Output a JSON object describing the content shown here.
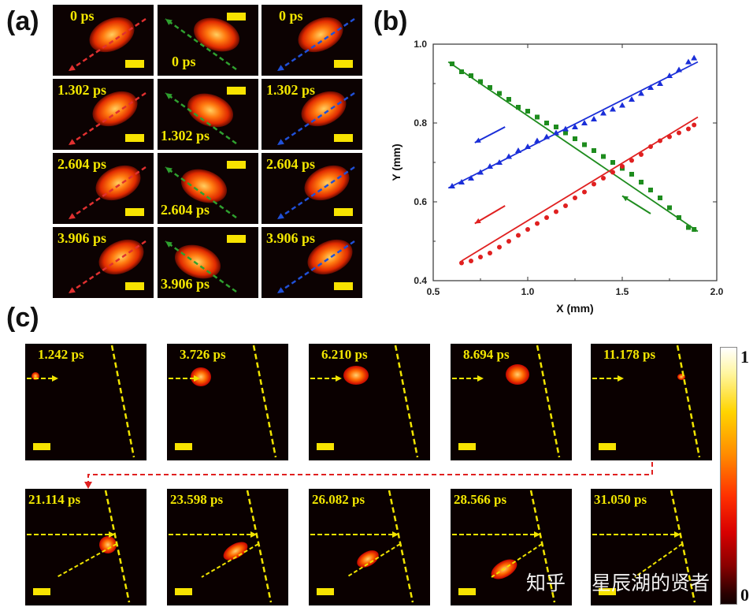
{
  "panel_labels": {
    "a": "(a)",
    "b": "(b)",
    "c": "(c)"
  },
  "panel_a": {
    "columns": [
      {
        "color": "#e03030",
        "direction": "down-left"
      },
      {
        "color": "#2fa02f",
        "direction": "up-left"
      },
      {
        "color": "#2050d8",
        "direction": "down-left"
      }
    ],
    "rows": [
      {
        "time": "0 ps"
      },
      {
        "time": "1.302 ps"
      },
      {
        "time": "2.604 ps"
      },
      {
        "time": "3.906 ps"
      }
    ]
  },
  "chart_data": {
    "type": "scatter",
    "title": "",
    "xlabel": "X (mm)",
    "ylabel": "Y (mm)",
    "xlim": [
      0.5,
      2.0
    ],
    "ylim": [
      0.4,
      1.0
    ],
    "xticks": [
      "0.5",
      "1.0",
      "1.5",
      "2.0"
    ],
    "yticks": [
      "0.4",
      "0.6",
      "0.8",
      "1.0"
    ],
    "series": [
      {
        "name": "green",
        "marker": "square",
        "color": "#1e8c1e",
        "points": [
          [
            0.6,
            0.95
          ],
          [
            0.65,
            0.93
          ],
          [
            0.7,
            0.92
          ],
          [
            0.75,
            0.905
          ],
          [
            0.8,
            0.89
          ],
          [
            0.85,
            0.875
          ],
          [
            0.9,
            0.86
          ],
          [
            0.95,
            0.84
          ],
          [
            1.0,
            0.83
          ],
          [
            1.05,
            0.815
          ],
          [
            1.1,
            0.8
          ],
          [
            1.15,
            0.79
          ],
          [
            1.2,
            0.775
          ],
          [
            1.25,
            0.76
          ],
          [
            1.3,
            0.745
          ],
          [
            1.35,
            0.73
          ],
          [
            1.4,
            0.715
          ],
          [
            1.45,
            0.7
          ],
          [
            1.5,
            0.685
          ],
          [
            1.55,
            0.67
          ],
          [
            1.6,
            0.65
          ],
          [
            1.65,
            0.63
          ],
          [
            1.7,
            0.61
          ],
          [
            1.75,
            0.585
          ],
          [
            1.8,
            0.56
          ],
          [
            1.85,
            0.535
          ],
          [
            1.88,
            0.53
          ]
        ],
        "fit": [
          [
            0.58,
            0.955
          ],
          [
            1.9,
            0.525
          ]
        ]
      },
      {
        "name": "blue",
        "marker": "triangle",
        "color": "#1a2ed8",
        "points": [
          [
            0.6,
            0.64
          ],
          [
            0.65,
            0.65
          ],
          [
            0.7,
            0.66
          ],
          [
            0.75,
            0.675
          ],
          [
            0.8,
            0.69
          ],
          [
            0.85,
            0.7
          ],
          [
            0.9,
            0.715
          ],
          [
            0.95,
            0.73
          ],
          [
            1.0,
            0.74
          ],
          [
            1.05,
            0.755
          ],
          [
            1.1,
            0.765
          ],
          [
            1.15,
            0.775
          ],
          [
            1.2,
            0.785
          ],
          [
            1.25,
            0.79
          ],
          [
            1.3,
            0.8
          ],
          [
            1.35,
            0.81
          ],
          [
            1.4,
            0.825
          ],
          [
            1.45,
            0.835
          ],
          [
            1.5,
            0.845
          ],
          [
            1.55,
            0.86
          ],
          [
            1.6,
            0.875
          ],
          [
            1.65,
            0.89
          ],
          [
            1.7,
            0.9
          ],
          [
            1.75,
            0.92
          ],
          [
            1.8,
            0.935
          ],
          [
            1.85,
            0.955
          ],
          [
            1.88,
            0.965
          ]
        ],
        "fit": [
          [
            0.58,
            0.635
          ],
          [
            1.9,
            0.955
          ]
        ]
      },
      {
        "name": "red",
        "marker": "circle",
        "color": "#e02020",
        "points": [
          [
            0.65,
            0.445
          ],
          [
            0.7,
            0.45
          ],
          [
            0.75,
            0.46
          ],
          [
            0.8,
            0.47
          ],
          [
            0.85,
            0.485
          ],
          [
            0.9,
            0.5
          ],
          [
            0.95,
            0.515
          ],
          [
            1.0,
            0.53
          ],
          [
            1.05,
            0.545
          ],
          [
            1.1,
            0.56
          ],
          [
            1.15,
            0.575
          ],
          [
            1.2,
            0.59
          ],
          [
            1.25,
            0.61
          ],
          [
            1.3,
            0.625
          ],
          [
            1.35,
            0.645
          ],
          [
            1.4,
            0.66
          ],
          [
            1.45,
            0.675
          ],
          [
            1.5,
            0.69
          ],
          [
            1.55,
            0.705
          ],
          [
            1.6,
            0.72
          ],
          [
            1.65,
            0.74
          ],
          [
            1.7,
            0.755
          ],
          [
            1.75,
            0.765
          ],
          [
            1.8,
            0.775
          ],
          [
            1.85,
            0.785
          ],
          [
            1.88,
            0.795
          ]
        ],
        "fit": [
          [
            0.65,
            0.45
          ],
          [
            1.9,
            0.815
          ]
        ]
      }
    ],
    "direction_arrows": [
      {
        "color": "#1a2ed8",
        "from": [
          0.88,
          0.79
        ],
        "to": [
          0.72,
          0.75
        ]
      },
      {
        "color": "#e02020",
        "from": [
          0.88,
          0.59
        ],
        "to": [
          0.72,
          0.545
        ]
      },
      {
        "color": "#1e8c1e",
        "from": [
          1.65,
          0.57
        ],
        "to": [
          1.5,
          0.615
        ]
      }
    ]
  },
  "panel_c": {
    "row1": [
      "1.242 ps",
      "3.726 ps",
      "6.210 ps",
      "8.694 ps",
      "11.178 ps"
    ],
    "row2": [
      "21.114 ps",
      "23.598 ps",
      "26.082 ps",
      "28.566 ps",
      "31.050 ps"
    ]
  },
  "colorbar": {
    "max_label": "1",
    "min_label": "0"
  },
  "watermark": "知乎 @星辰湖的贤者"
}
